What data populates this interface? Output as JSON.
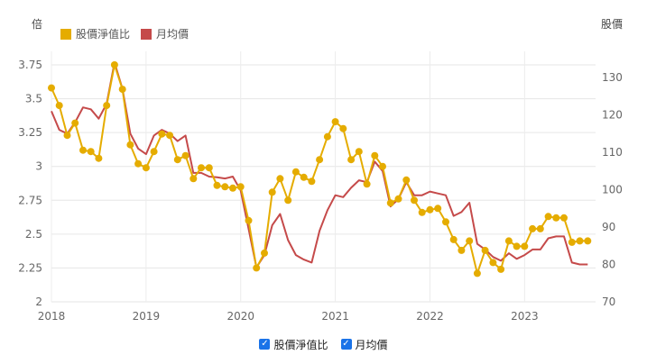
{
  "chart_data": {
    "type": "line",
    "title": "",
    "y_left_label": "倍",
    "y_right_label": "股價",
    "legend_position": "top-left",
    "y_left_lim": [
      2,
      3.85
    ],
    "y_right_lim": [
      70,
      137
    ],
    "y_left_ticks": [
      "2",
      "2.25",
      "2.5",
      "2.75",
      "3",
      "3.25",
      "3.5",
      "3.75"
    ],
    "y_right_ticks": [
      "70",
      "80",
      "90",
      "100",
      "110",
      "120",
      "130"
    ],
    "x_ticks": [
      "2018",
      "2019",
      "2020",
      "2021",
      "2022",
      "2023"
    ],
    "x_tick_values": [
      2018,
      2019,
      2020,
      2021,
      2022,
      2023
    ],
    "x_lim": [
      2018,
      2023.75
    ],
    "series": [
      {
        "name": "股價淨值比",
        "color": "#e5ac00",
        "axis": "left",
        "markers": true,
        "x": [
          2018.0,
          2018.0833,
          2018.1667,
          2018.25,
          2018.3333,
          2018.4167,
          2018.5,
          2018.5833,
          2018.6667,
          2018.75,
          2018.8333,
          2018.9167,
          2019.0,
          2019.0833,
          2019.1667,
          2019.25,
          2019.3333,
          2019.4167,
          2019.5,
          2019.5833,
          2019.6667,
          2019.75,
          2019.8333,
          2019.9167,
          2020.0,
          2020.0833,
          2020.1667,
          2020.25,
          2020.3333,
          2020.4167,
          2020.5,
          2020.5833,
          2020.6667,
          2020.75,
          2020.8333,
          2020.9167,
          2021.0,
          2021.0833,
          2021.1667,
          2021.25,
          2021.3333,
          2021.4167,
          2021.5,
          2021.5833,
          2021.6667,
          2021.75,
          2021.8333,
          2021.9167,
          2022.0,
          2022.0833,
          2022.1667,
          2022.25,
          2022.3333,
          2022.4167,
          2022.5,
          2022.5833,
          2022.6667,
          2022.75,
          2022.8333,
          2022.9167,
          2023.0,
          2023.0833,
          2023.1667,
          2023.25,
          2023.3333,
          2023.4167,
          2023.5,
          2023.5833,
          2023.6667
        ],
        "values": [
          3.58,
          3.45,
          3.23,
          3.32,
          3.12,
          3.11,
          3.06,
          3.45,
          3.75,
          3.57,
          3.16,
          3.02,
          2.99,
          3.11,
          3.24,
          3.23,
          3.05,
          3.08,
          2.91,
          2.99,
          2.99,
          2.86,
          2.85,
          2.84,
          2.85,
          2.6,
          2.25,
          2.36,
          2.81,
          2.91,
          2.75,
          2.96,
          2.92,
          2.89,
          3.05,
          3.22,
          3.33,
          3.28,
          3.05,
          3.11,
          2.87,
          3.08,
          3.0,
          2.73,
          2.76,
          2.9,
          2.75,
          2.66,
          2.68,
          2.69,
          2.59,
          2.46,
          2.38,
          2.45,
          2.21,
          2.38,
          2.29,
          2.24,
          2.45,
          2.41,
          2.41,
          2.54,
          2.54,
          2.63,
          2.62,
          2.62,
          2.44,
          2.45,
          2.45
        ]
      },
      {
        "name": "月均價",
        "color": "#c54a4a",
        "axis": "right",
        "markers": false,
        "x": [
          2018.0,
          2018.0833,
          2018.1667,
          2018.25,
          2018.3333,
          2018.4167,
          2018.5,
          2018.5833,
          2018.6667,
          2018.75,
          2018.8333,
          2018.9167,
          2019.0,
          2019.0833,
          2019.1667,
          2019.25,
          2019.3333,
          2019.4167,
          2019.5,
          2019.5833,
          2019.6667,
          2019.75,
          2019.8333,
          2019.9167,
          2020.0,
          2020.0833,
          2020.1667,
          2020.25,
          2020.3333,
          2020.4167,
          2020.5,
          2020.5833,
          2020.6667,
          2020.75,
          2020.8333,
          2020.9167,
          2021.0,
          2021.0833,
          2021.1667,
          2021.25,
          2021.3333,
          2021.4167,
          2021.5,
          2021.5833,
          2021.6667,
          2021.75,
          2021.8333,
          2021.9167,
          2022.0,
          2022.0833,
          2022.1667,
          2022.25,
          2022.3333,
          2022.4167,
          2022.5,
          2022.5833,
          2022.6667,
          2022.75,
          2022.8333,
          2022.9167,
          2023.0,
          2023.0833,
          2023.1667,
          2023.25,
          2023.3333,
          2023.4167,
          2023.5,
          2023.5833,
          2023.6667
        ],
        "values": [
          121,
          116,
          115,
          118,
          122,
          121.5,
          119,
          123,
          134,
          127,
          115,
          111,
          109.5,
          114.5,
          116,
          115,
          113,
          114.5,
          104.5,
          104.5,
          103.5,
          103.3,
          103,
          103.5,
          99.8,
          89.5,
          79.2,
          82.5,
          90.5,
          93.5,
          86.5,
          82.5,
          81.3,
          80.5,
          89,
          94.5,
          98.5,
          98,
          100.5,
          102.5,
          102,
          107.5,
          105,
          95.5,
          97.5,
          102,
          98.5,
          98.5,
          99.5,
          99,
          98.5,
          93,
          94,
          96.5,
          85.5,
          84,
          82,
          81,
          83,
          81.5,
          82.5,
          84,
          84,
          87,
          87.5,
          87.5,
          80.5,
          80,
          80
        ]
      }
    ]
  }
}
